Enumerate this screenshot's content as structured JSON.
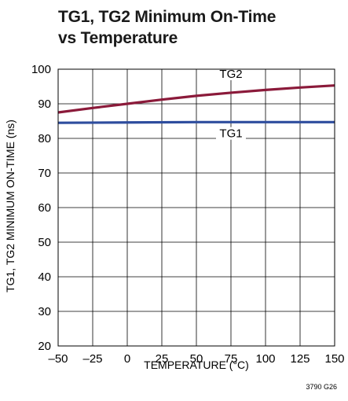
{
  "title": {
    "line1": "TG1, TG2 Minimum On-Time",
    "line2": "vs Temperature"
  },
  "figure_code": "3790 G26",
  "chart_data": {
    "type": "line",
    "xlabel": "TEMPERATURE (°C)",
    "ylabel": "TG1, TG2 MINIMUM ON-TIME (ns)",
    "xlim": [
      -50,
      150
    ],
    "ylim": [
      20,
      100
    ],
    "xticks": [
      -50,
      -25,
      0,
      25,
      50,
      75,
      100,
      125,
      150
    ],
    "xtick_labels": [
      "–50",
      "–25",
      "0",
      "25",
      "50",
      "75",
      "100",
      "125",
      "150"
    ],
    "yticks": [
      20,
      30,
      40,
      50,
      60,
      70,
      80,
      90,
      100
    ],
    "grid": true,
    "series": [
      {
        "name": "TG2",
        "color": "#8b1a3a",
        "x": [
          -50,
          -25,
          0,
          25,
          50,
          75,
          100,
          125,
          150
        ],
        "y": [
          87.5,
          88.8,
          90.0,
          91.2,
          92.3,
          93.2,
          94.0,
          94.7,
          95.3
        ],
        "label_at": [
          75,
          97.5
        ]
      },
      {
        "name": "TG1",
        "color": "#2e4d9e",
        "x": [
          -50,
          0,
          50,
          100,
          150
        ],
        "y": [
          84.5,
          84.6,
          84.7,
          84.7,
          84.7
        ],
        "label_at": [
          75,
          80.3
        ]
      }
    ]
  }
}
